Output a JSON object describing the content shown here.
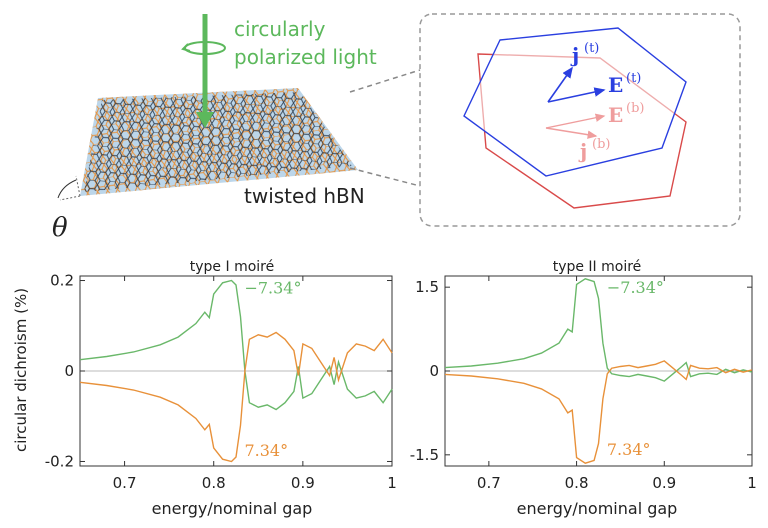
{
  "illustration": {
    "light_label_line1": "circularly",
    "light_label_line2": "polarized light",
    "sample_label": "twisted hBN",
    "angle_symbol": "θ",
    "vectors": {
      "j_top": "j",
      "j_top_sup": "(t)",
      "E_top": "E",
      "E_top_sup": "(t)",
      "E_bottom": "E",
      "E_bottom_sup": "(b)",
      "j_bottom": "j",
      "j_bottom_sup": "(b)"
    },
    "colors": {
      "light": "#5cb85c",
      "top_layer": "#2a3fe0",
      "bottom_layer": "#d94a4a",
      "lattice_a": "#e8913a",
      "lattice_b": "#3a7fc4"
    }
  },
  "ylabel": "circular dichroism (%)",
  "chart_data": [
    {
      "type": "line",
      "title": "type I moiré",
      "xlabel": "energy/nominal gap",
      "xlim": [
        0.65,
        1.0
      ],
      "ylim": [
        -0.21,
        0.21
      ],
      "xticks": [
        0.7,
        0.8,
        0.9,
        1.0
      ],
      "xtick_labels": [
        "0.7",
        "0.8",
        "0.9",
        "1"
      ],
      "yticks": [
        0.2,
        0,
        -0.2
      ],
      "ytick_labels": [
        "0.2",
        "0",
        "-0.2"
      ],
      "series": [
        {
          "name": "−7.34°",
          "color": "#6ab86a",
          "x": [
            0.65,
            0.68,
            0.71,
            0.74,
            0.76,
            0.78,
            0.79,
            0.795,
            0.8,
            0.81,
            0.82,
            0.825,
            0.83,
            0.835,
            0.84,
            0.85,
            0.86,
            0.87,
            0.88,
            0.89,
            0.895,
            0.9,
            0.91,
            0.92,
            0.93,
            0.935,
            0.94,
            0.95,
            0.96,
            0.97,
            0.98,
            0.99,
            1.0
          ],
          "y": [
            0.025,
            0.032,
            0.042,
            0.058,
            0.075,
            0.105,
            0.13,
            0.118,
            0.17,
            0.195,
            0.2,
            0.19,
            0.12,
            0.0,
            -0.07,
            -0.08,
            -0.075,
            -0.085,
            -0.07,
            -0.045,
            0.01,
            -0.06,
            -0.05,
            -0.02,
            0.01,
            -0.03,
            0.02,
            -0.04,
            -0.06,
            -0.055,
            -0.045,
            -0.07,
            -0.04
          ]
        },
        {
          "name": "7.34°",
          "color": "#e8913a",
          "x": [
            0.65,
            0.68,
            0.71,
            0.74,
            0.76,
            0.78,
            0.79,
            0.795,
            0.8,
            0.81,
            0.82,
            0.825,
            0.83,
            0.835,
            0.84,
            0.85,
            0.86,
            0.87,
            0.88,
            0.89,
            0.895,
            0.9,
            0.91,
            0.92,
            0.93,
            0.935,
            0.94,
            0.95,
            0.96,
            0.97,
            0.98,
            0.99,
            1.0
          ],
          "y": [
            -0.025,
            -0.032,
            -0.042,
            -0.058,
            -0.075,
            -0.105,
            -0.13,
            -0.118,
            -0.17,
            -0.195,
            -0.2,
            -0.19,
            -0.12,
            0.0,
            0.07,
            0.08,
            0.075,
            0.085,
            0.07,
            0.045,
            -0.01,
            0.06,
            0.05,
            0.02,
            -0.01,
            0.03,
            -0.02,
            0.04,
            0.06,
            0.055,
            0.045,
            0.07,
            0.04
          ]
        }
      ],
      "annotations": [
        "−7.34°",
        "7.34°"
      ]
    },
    {
      "type": "line",
      "title": "type II moiré",
      "xlabel": "energy/nominal gap",
      "xlim": [
        0.65,
        1.0
      ],
      "ylim": [
        -1.7,
        1.7
      ],
      "xticks": [
        0.7,
        0.8,
        0.9,
        1.0
      ],
      "xtick_labels": [
        "0.7",
        "0.8",
        "0.9",
        "1"
      ],
      "yticks": [
        1.5,
        0,
        -1.5
      ],
      "ytick_labels": [
        "1.5",
        "0",
        "-1.5"
      ],
      "series": [
        {
          "name": "−7.34°",
          "color": "#6ab86a",
          "x": [
            0.65,
            0.68,
            0.71,
            0.74,
            0.76,
            0.78,
            0.79,
            0.795,
            0.8,
            0.81,
            0.82,
            0.825,
            0.83,
            0.835,
            0.84,
            0.85,
            0.86,
            0.87,
            0.88,
            0.89,
            0.9,
            0.91,
            0.92,
            0.925,
            0.93,
            0.94,
            0.95,
            0.96,
            0.97,
            0.98,
            0.99,
            1.0
          ],
          "y": [
            0.06,
            0.09,
            0.14,
            0.22,
            0.32,
            0.5,
            0.75,
            0.7,
            1.55,
            1.65,
            1.6,
            1.3,
            0.5,
            0.05,
            -0.05,
            -0.08,
            -0.1,
            -0.06,
            -0.09,
            -0.12,
            -0.18,
            -0.05,
            0.08,
            0.15,
            -0.1,
            -0.05,
            -0.04,
            -0.06,
            0.03,
            -0.03,
            0.02,
            -0.02
          ]
        },
        {
          "name": "7.34°",
          "color": "#e8913a",
          "x": [
            0.65,
            0.68,
            0.71,
            0.74,
            0.76,
            0.78,
            0.79,
            0.795,
            0.8,
            0.81,
            0.82,
            0.825,
            0.83,
            0.835,
            0.84,
            0.85,
            0.86,
            0.87,
            0.88,
            0.89,
            0.9,
            0.91,
            0.92,
            0.925,
            0.93,
            0.94,
            0.95,
            0.96,
            0.97,
            0.98,
            0.99,
            1.0
          ],
          "y": [
            -0.06,
            -0.09,
            -0.14,
            -0.22,
            -0.32,
            -0.5,
            -0.75,
            -0.7,
            -1.55,
            -1.65,
            -1.6,
            -1.3,
            -0.5,
            -0.05,
            0.05,
            0.08,
            0.1,
            0.06,
            0.09,
            0.12,
            0.18,
            0.05,
            -0.08,
            -0.15,
            0.1,
            0.05,
            0.04,
            0.06,
            -0.03,
            0.03,
            -0.02,
            0.02
          ]
        }
      ],
      "annotations": [
        "−7.34°",
        "7.34°"
      ]
    }
  ]
}
